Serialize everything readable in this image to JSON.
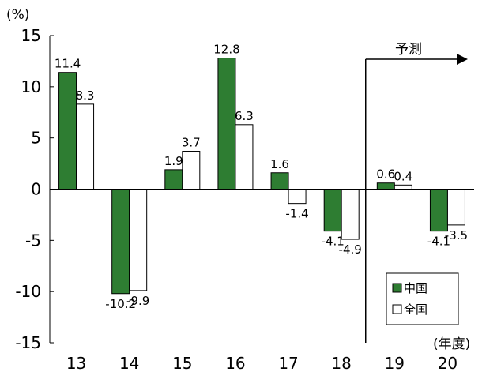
{
  "chart_data": {
    "type": "bar",
    "y_unit": "(%)",
    "x_unit": "(年度)",
    "categories": [
      "13",
      "14",
      "15",
      "16",
      "17",
      "18",
      "19",
      "20"
    ],
    "ylim": [
      -15,
      15
    ],
    "yticks": [
      15,
      10,
      5,
      0,
      -5,
      -10,
      -15
    ],
    "series": [
      {
        "name": "中国",
        "color": "#2e7d32",
        "values": [
          11.4,
          -10.2,
          1.9,
          12.8,
          1.6,
          -4.1,
          0.6,
          -4.1
        ]
      },
      {
        "name": "全国",
        "color": "#ffffff",
        "values": [
          8.3,
          -9.9,
          3.7,
          6.3,
          -1.4,
          -4.9,
          0.4,
          -3.5
        ]
      }
    ],
    "forecast": {
      "label": "予測",
      "from_category": "19"
    },
    "legend_position": "bottom-right",
    "grid": false
  }
}
